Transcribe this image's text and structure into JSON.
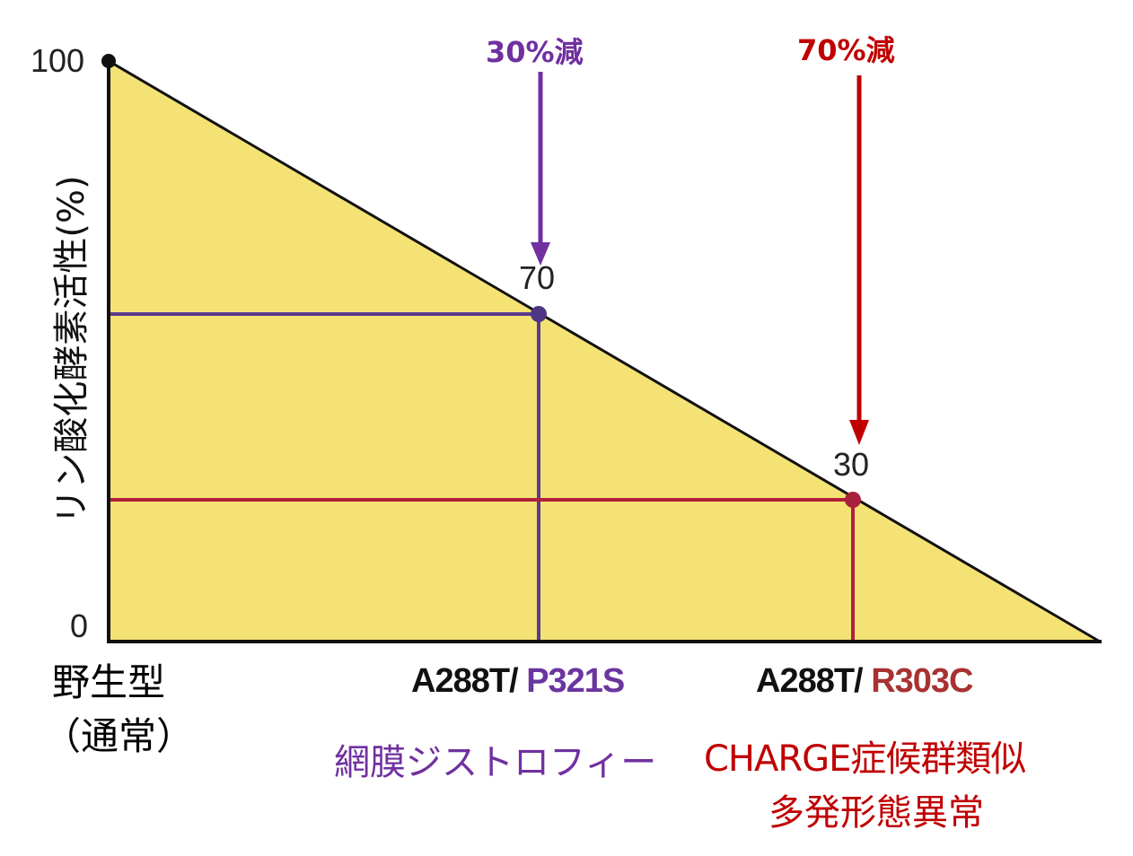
{
  "y_axis": {
    "label": "リン酸化酵素活性(%)",
    "ticks": [
      "100",
      "0"
    ]
  },
  "x_axis": {
    "wild_type": {
      "line1": "野生型",
      "line2": "（通常）"
    }
  },
  "colors": {
    "fill": "#f4e274",
    "purple": "#6b35a0",
    "purple_line": "#5a3a8c",
    "red": "#c00000",
    "red_line": "#b0203c",
    "red_mut": "#a83232"
  },
  "variants": [
    {
      "activity": 70,
      "value_label": "70",
      "reduction_label": "30%減",
      "mutation_common": "A288T/",
      "mutation_second": "P321S",
      "phenotype_lines": [
        "網膜ジストロフィー"
      ],
      "color": "purple"
    },
    {
      "activity": 30,
      "value_label": "30",
      "reduction_label": "70%減",
      "mutation_common": "A288T/",
      "mutation_second": "R303C",
      "phenotype_lines": [
        "CHARGE症候群類似",
        "多発形態異常"
      ],
      "color": "red"
    }
  ]
}
